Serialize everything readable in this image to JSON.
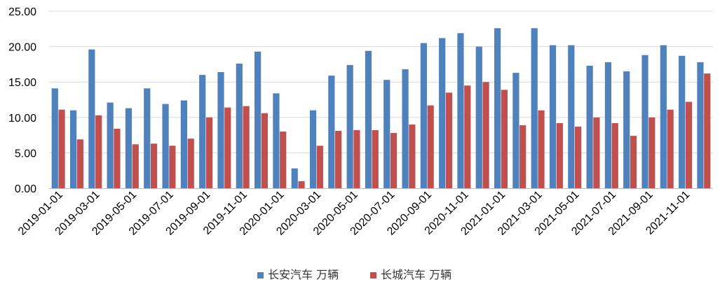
{
  "chart_data": {
    "type": "bar",
    "title": "",
    "xlabel": "",
    "ylabel": "",
    "ylim": [
      0,
      25
    ],
    "y_ticks": [
      "0.00",
      "5.00",
      "10.00",
      "15.00",
      "20.00",
      "25.00"
    ],
    "grid": true,
    "legend_position": "bottom",
    "categories": [
      "2019-01-01",
      "2019-02-01",
      "2019-03-01",
      "2019-04-01",
      "2019-05-01",
      "2019-06-01",
      "2019-07-01",
      "2019-08-01",
      "2019-09-01",
      "2019-10-01",
      "2019-11-01",
      "2019-12-01",
      "2020-01-01",
      "2020-02-01",
      "2020-03-01",
      "2020-04-01",
      "2020-05-01",
      "2020-06-01",
      "2020-07-01",
      "2020-08-01",
      "2020-09-01",
      "2020-10-01",
      "2020-11-01",
      "2020-12-01",
      "2021-01-01",
      "2021-02-01",
      "2021-03-01",
      "2021-04-01",
      "2021-05-01",
      "2021-06-01",
      "2021-07-01",
      "2021-08-01",
      "2021-09-01",
      "2021-10-01",
      "2021-11-01",
      "2021-12-01"
    ],
    "x_tick_labels": [
      "2019-01-01",
      "2019-03-01",
      "2019-05-01",
      "2019-07-01",
      "2019-09-01",
      "2019-11-01",
      "2020-01-01",
      "2020-03-01",
      "2020-05-01",
      "2020-07-01",
      "2020-09-01",
      "2020-11-01",
      "2021-01-01",
      "2021-03-01",
      "2021-05-01",
      "2021-07-01",
      "2021-09-01",
      "2021-11-01"
    ],
    "series": [
      {
        "name": "长安汽车 万辆",
        "color": "#4f81bd",
        "values": [
          14.1,
          11.0,
          19.6,
          12.1,
          11.3,
          14.1,
          11.9,
          12.4,
          16.0,
          16.4,
          17.6,
          19.3,
          13.4,
          2.8,
          11.0,
          15.9,
          17.4,
          19.4,
          15.3,
          16.8,
          20.5,
          21.2,
          21.9,
          20.0,
          22.6,
          16.3,
          22.6,
          20.2,
          20.2,
          17.3,
          17.8,
          16.5,
          18.8,
          20.2,
          18.7,
          17.8
        ]
      },
      {
        "name": "长城汽车 万辆",
        "color": "#c0504d",
        "values": [
          11.1,
          6.9,
          10.3,
          8.4,
          6.2,
          6.3,
          6.0,
          7.0,
          10.0,
          11.4,
          11.6,
          10.6,
          8.0,
          1.0,
          6.0,
          8.1,
          8.2,
          8.2,
          7.8,
          9.0,
          11.7,
          13.5,
          14.5,
          15.0,
          13.9,
          8.9,
          11.0,
          9.2,
          8.7,
          10.0,
          9.2,
          7.4,
          10.0,
          11.1,
          12.2,
          16.2
        ]
      }
    ]
  }
}
